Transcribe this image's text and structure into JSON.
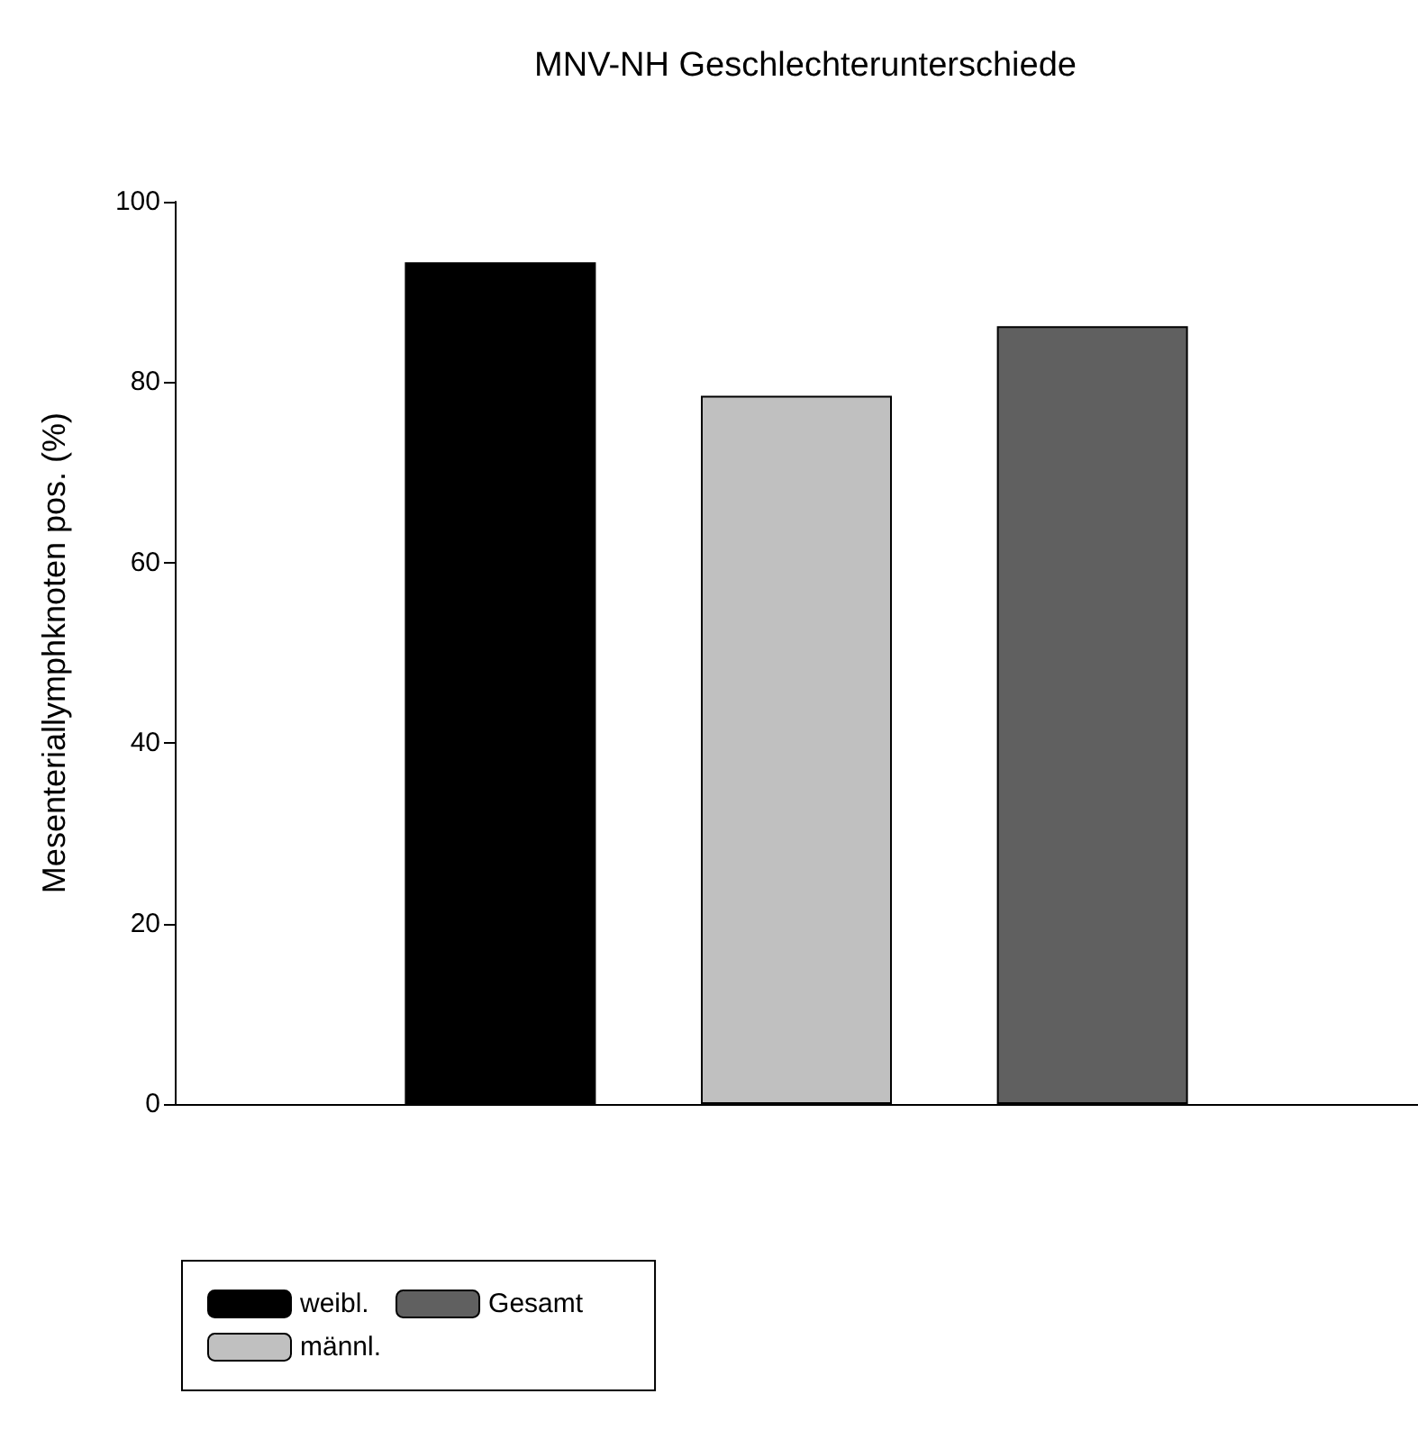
{
  "chart_data": {
    "type": "bar",
    "title": "MNV-NH Geschlechterunterschiede",
    "ylabel": "Mesenteriallymphknoten pos. (%)",
    "categories": [
      null
    ],
    "series": [
      {
        "name": "weibl.",
        "color": "#000000",
        "values": [
          93.3
        ]
      },
      {
        "name": "männl.",
        "color": "#c0c0c0",
        "values": [
          78.5
        ]
      },
      {
        "name": "Gesamt",
        "color": "#606060",
        "values": [
          86.2
        ]
      }
    ],
    "ylim": [
      0,
      100
    ],
    "yticks": [
      0,
      20,
      40,
      60,
      80,
      100
    ],
    "grid": false,
    "legend": "bottom left"
  }
}
